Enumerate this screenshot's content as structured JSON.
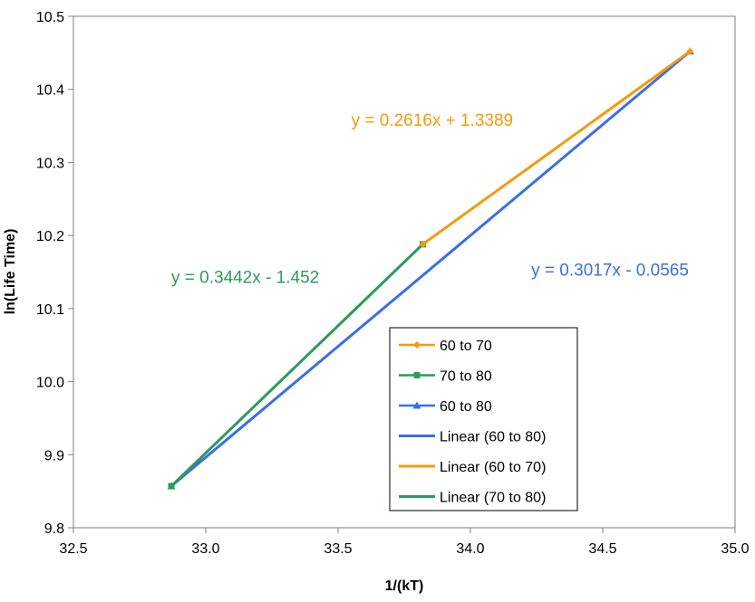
{
  "chart_data": {
    "type": "line",
    "xlabel": "1/(kT)",
    "ylabel": "ln(Life Time)",
    "xlim": [
      32.5,
      35.0
    ],
    "ylim": [
      9.8,
      10.5
    ],
    "x_ticks": [
      "32.5",
      "33.0",
      "33.5",
      "34.0",
      "34.5",
      "35.0"
    ],
    "y_ticks": [
      "9.8",
      "9.9",
      "10.0",
      "10.1",
      "10.2",
      "10.3",
      "10.4",
      "10.5"
    ],
    "grid": false,
    "legend_position": "bottom-center",
    "series": [
      {
        "name": "60 to 70",
        "kind": "data",
        "marker": "diamond",
        "color": "#F59A0C",
        "x": [
          33.82,
          34.83
        ],
        "y": [
          10.188,
          10.452
        ]
      },
      {
        "name": "70 to 80",
        "kind": "data",
        "marker": "square",
        "color": "#2E9A5C",
        "x": [
          32.87,
          33.82
        ],
        "y": [
          9.857,
          10.188
        ]
      },
      {
        "name": "60 to 80",
        "kind": "data",
        "marker": "triangle",
        "color": "#3B6FE8",
        "x": [
          32.87,
          34.83
        ],
        "y": [
          9.857,
          10.452
        ]
      },
      {
        "name": "Linear (60 to 80)",
        "kind": "trendline",
        "color": "#3B6FE8",
        "x": [
          32.87,
          34.83
        ],
        "y": [
          9.857,
          10.452
        ]
      },
      {
        "name": "Linear (60 to 70)",
        "kind": "trendline",
        "color": "#F59A0C",
        "x": [
          33.82,
          34.83
        ],
        "y": [
          10.188,
          10.452
        ]
      },
      {
        "name": "Linear (70 to 80)",
        "kind": "trendline",
        "color": "#2E9A5C",
        "x": [
          32.87,
          33.82
        ],
        "y": [
          9.857,
          10.188
        ]
      }
    ],
    "annotations": [
      {
        "text": "y = 0.2616x + 1.3389",
        "color": "#F59A0C",
        "x": 33.55,
        "y": 10.35
      },
      {
        "text": "y = 0.3442x - 1.452",
        "color": "#2E9A5C",
        "x": 32.87,
        "y": 10.135
      },
      {
        "text": "y = 0.3017x - 0.0565",
        "color": "#3B6FE8",
        "x": 34.23,
        "y": 10.145
      }
    ]
  }
}
